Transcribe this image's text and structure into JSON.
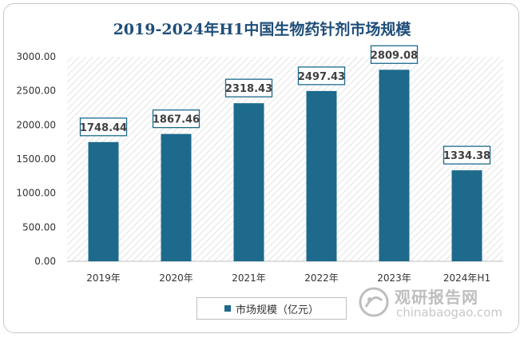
{
  "title": "2019-2024年H1中国生物药针剂市场规模",
  "legend": "市场规模（亿元）",
  "watermark": {
    "name": "观研报告网",
    "url": "chinabaogao.com"
  },
  "colors": {
    "bar": "#1d6a8d",
    "title": "#1f4e79",
    "label_border": "#1d6a8d"
  },
  "chart_data": {
    "type": "bar",
    "title": "2019-2024年H1中国生物药针剂市场规模",
    "categories": [
      "2019年",
      "2020年",
      "2021年",
      "2022年",
      "2023年",
      "2024年H1"
    ],
    "series": [
      {
        "name": "市场规模（亿元）",
        "values": [
          1748.44,
          1867.46,
          2318.43,
          2497.43,
          2809.08,
          1334.38
        ]
      }
    ],
    "value_labels": [
      "1748.44",
      "1867.46",
      "2318.43",
      "2497.43",
      "2809.08",
      "1334.38"
    ],
    "ylim": [
      0,
      3000
    ],
    "yticks": [
      "0.00",
      "500.00",
      "1000.00",
      "1500.00",
      "2000.00",
      "2500.00",
      "3000.00"
    ],
    "ytick_values": [
      0,
      500,
      1000,
      1500,
      2000,
      2500,
      3000
    ],
    "grid": false,
    "legend_position": "bottom"
  }
}
